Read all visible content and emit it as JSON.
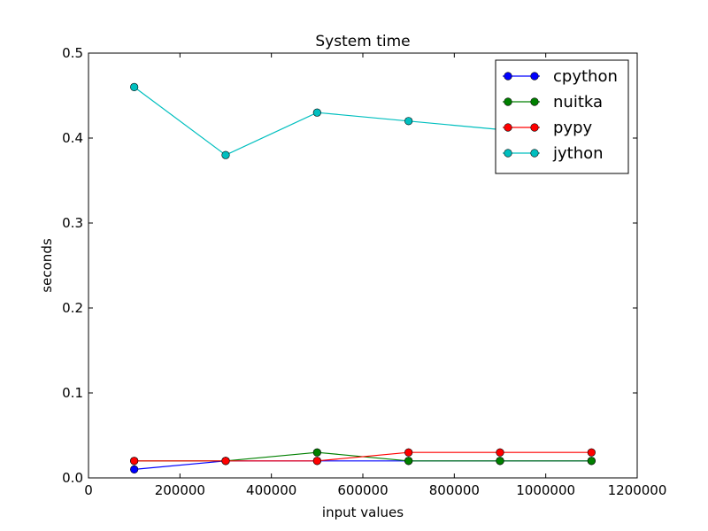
{
  "chart_data": {
    "type": "line",
    "title": "System time",
    "xlabel": "input values",
    "ylabel": "seconds",
    "xlim": [
      0,
      1200000
    ],
    "ylim": [
      0,
      0.5
    ],
    "x_ticks": [
      0,
      200000,
      400000,
      600000,
      800000,
      1000000,
      1200000
    ],
    "x_tick_labels": [
      "0",
      "200000",
      "400000",
      "600000",
      "800000",
      "1000000",
      "1200000"
    ],
    "y_ticks": [
      0,
      0.1,
      0.2,
      0.3,
      0.4,
      0.5
    ],
    "y_tick_labels": [
      "0.0",
      "0.1",
      "0.2",
      "0.3",
      "0.4",
      "0.5"
    ],
    "grid": false,
    "legend_position": "top-right",
    "x": [
      100000,
      300000,
      500000,
      700000,
      900000,
      1100000
    ],
    "series": [
      {
        "name": "cpython",
        "color": "#0000ff",
        "values": [
          0.01,
          0.02,
          0.02,
          0.02,
          0.02,
          0.02
        ]
      },
      {
        "name": "nuitka",
        "color": "#008000",
        "values": [
          0.02,
          0.02,
          0.03,
          0.02,
          0.02,
          0.02
        ]
      },
      {
        "name": "pypy",
        "color": "#ff0000",
        "values": [
          0.02,
          0.02,
          0.02,
          0.03,
          0.03,
          0.03
        ]
      },
      {
        "name": "jython",
        "color": "#00bfbf",
        "values": [
          0.46,
          0.38,
          0.43,
          0.42,
          0.41,
          0.41
        ]
      }
    ]
  }
}
